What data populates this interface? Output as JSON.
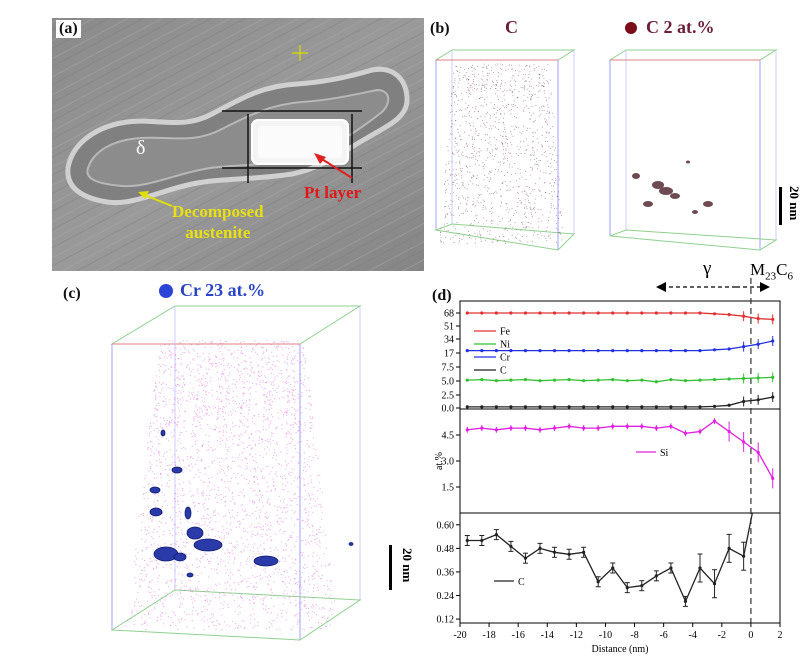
{
  "panel_a": {
    "label": "(a)",
    "delta_label": "δ",
    "pt_label": "Pt layer",
    "austenite_label_1": "Decomposed",
    "austenite_label_2": "austenite"
  },
  "panel_b": {
    "label": "(b)",
    "title_left": "C",
    "title_right": "C 2 at.%",
    "scale_bar": "20 nm",
    "colors": {
      "carbon": "#6b1e3a",
      "isosurface": "#6e4a52"
    }
  },
  "panel_c": {
    "label": "(c)",
    "title": "Cr 23 at.%",
    "scale_bar": "20 nm",
    "colors": {
      "cr": "#1f3ab8",
      "atoms": "#e070e0"
    }
  },
  "panel_d": {
    "label": "(d)",
    "gamma_label": "γ",
    "carbide_label": "M",
    "carbide_sub": "23",
    "carbide_c": "C",
    "carbide_sub2": "6",
    "ylabel": "at.%",
    "xlabel": "Distance (nm)"
  },
  "chart_data": [
    {
      "type": "line",
      "xlabel": "Distance (nm)",
      "xlim": [
        -20,
        2
      ],
      "ylim": [
        0,
        75
      ],
      "yticks": [
        "0.0",
        "2.5",
        "5.0",
        "7.5",
        "17",
        "34",
        "51",
        "68"
      ],
      "xticks": [
        -20,
        -18,
        -16,
        -14,
        -12,
        -10,
        -8,
        -6,
        -4,
        -2,
        0,
        2
      ],
      "legend_position": "left",
      "series": [
        {
          "name": "Fe",
          "color": "#e03030",
          "x": [
            -19.5,
            -18.5,
            -17.5,
            -16.5,
            -15.5,
            -14.5,
            -13.5,
            -12.5,
            -11.5,
            -10.5,
            -9.5,
            -8.5,
            -7.5,
            -6.5,
            -5.5,
            -4.5,
            -3.5,
            -2.5,
            -1.5,
            -0.5,
            0.5,
            1.5
          ],
          "values": [
            67,
            67,
            67,
            67,
            67,
            67,
            67,
            67,
            67,
            67,
            67,
            67,
            67,
            67,
            67,
            67,
            67,
            66,
            65,
            63,
            60,
            59
          ]
        },
        {
          "name": "Cr",
          "color": "#2030e0",
          "x": [
            -19.5,
            -18.5,
            -17.5,
            -16.5,
            -15.5,
            -14.5,
            -13.5,
            -12.5,
            -11.5,
            -10.5,
            -9.5,
            -8.5,
            -7.5,
            -6.5,
            -5.5,
            -4.5,
            -3.5,
            -2.5,
            -1.5,
            -0.5,
            0.5,
            1.5
          ],
          "values": [
            20,
            20,
            20,
            20,
            20,
            20,
            20,
            20,
            20,
            20,
            20,
            20,
            20,
            20,
            20,
            20,
            20,
            21,
            22,
            25,
            28,
            32
          ]
        },
        {
          "name": "Ni",
          "color": "#30c030",
          "x": [
            -19.5,
            -18.5,
            -17.5,
            -16.5,
            -15.5,
            -14.5,
            -13.5,
            -12.5,
            -11.5,
            -10.5,
            -9.5,
            -8.5,
            -7.5,
            -6.5,
            -5.5,
            -4.5,
            -3.5,
            -2.5,
            -1.5,
            -0.5,
            0.5,
            1.5
          ],
          "values": [
            5.1,
            5.2,
            5.0,
            5.1,
            5.2,
            5.0,
            5.1,
            5.2,
            5.0,
            5.1,
            5.2,
            5.0,
            5.1,
            4.8,
            5.2,
            5.0,
            5.1,
            5.2,
            5.3,
            5.4,
            5.5,
            5.6
          ]
        },
        {
          "name": "C",
          "color": "#222222",
          "x": [
            -19.5,
            -18.5,
            -17.5,
            -16.5,
            -15.5,
            -14.5,
            -13.5,
            -12.5,
            -11.5,
            -10.5,
            -9.5,
            -8.5,
            -7.5,
            -6.5,
            -5.5,
            -4.5,
            -3.5,
            -2.5,
            -1.5,
            -0.5,
            0.5,
            1.5
          ],
          "values": [
            0.2,
            0.2,
            0.2,
            0.2,
            0.2,
            0.2,
            0.2,
            0.2,
            0.2,
            0.2,
            0.2,
            0.2,
            0.2,
            0.2,
            0.2,
            0.2,
            0.2,
            0.3,
            0.5,
            1.2,
            1.5,
            2.0
          ]
        }
      ]
    },
    {
      "type": "line",
      "ylabel": "at.%",
      "xlim": [
        -20,
        2
      ],
      "ylim": [
        0,
        6
      ],
      "yticks": [
        "1.5",
        "3.0",
        "4.5"
      ],
      "series": [
        {
          "name": "Si",
          "color": "#e020e0",
          "x": [
            -19.5,
            -18.5,
            -17.5,
            -16.5,
            -15.5,
            -14.5,
            -13.5,
            -12.5,
            -11.5,
            -10.5,
            -9.5,
            -8.5,
            -7.5,
            -6.5,
            -5.5,
            -4.5,
            -3.5,
            -2.5,
            -1.5,
            -0.5,
            0.5,
            1.5
          ],
          "values": [
            4.8,
            4.9,
            4.8,
            4.9,
            4.9,
            4.8,
            4.9,
            5.0,
            4.9,
            4.9,
            5.0,
            5.0,
            5.0,
            4.9,
            5.0,
            4.6,
            4.7,
            5.3,
            4.7,
            4.1,
            3.5,
            2.0
          ]
        }
      ]
    },
    {
      "type": "line",
      "xlabel": "Distance (nm)",
      "xlim": [
        -20,
        2
      ],
      "ylim": [
        0.1,
        0.66
      ],
      "yticks": [
        "0.12",
        "0.24",
        "0.36",
        "0.48",
        "0.60"
      ],
      "xticks": [
        -20,
        -18,
        -16,
        -14,
        -12,
        -10,
        -8,
        -6,
        -4,
        -2,
        0,
        2
      ],
      "series": [
        {
          "name": "C",
          "color": "#222222",
          "x": [
            -19.5,
            -18.5,
            -17.5,
            -16.5,
            -15.5,
            -14.5,
            -13.5,
            -12.5,
            -11.5,
            -10.5,
            -9.5,
            -8.5,
            -7.5,
            -6.5,
            -5.5,
            -4.5,
            -3.5,
            -2.5,
            -1.5,
            -0.5
          ],
          "values": [
            0.52,
            0.52,
            0.55,
            0.49,
            0.43,
            0.48,
            0.46,
            0.45,
            0.46,
            0.31,
            0.38,
            0.28,
            0.29,
            0.34,
            0.38,
            0.21,
            0.38,
            0.3,
            0.48,
            0.44
          ]
        }
      ]
    }
  ]
}
